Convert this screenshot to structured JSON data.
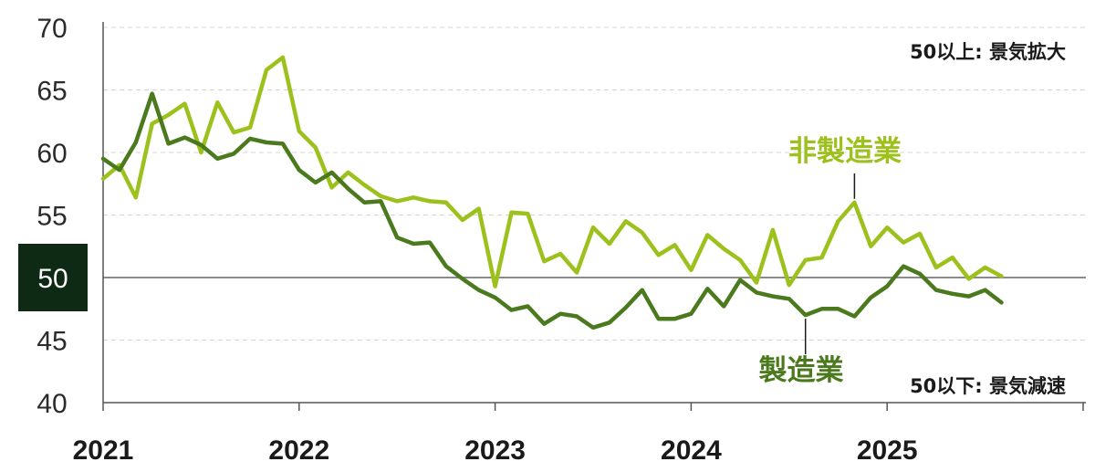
{
  "chart_data": {
    "type": "line",
    "ylim": [
      40,
      70
    ],
    "yticks": [
      40,
      45,
      50,
      55,
      60,
      65,
      70
    ],
    "highlight_y": 50,
    "x_start": "2021-01",
    "x_ticks": [
      "2021",
      "2022",
      "2023",
      "2024",
      "2025"
    ],
    "grid": true,
    "annotations": {
      "upper": "50以上: 景気拡大",
      "lower": "50以下: 景気減速"
    },
    "series": [
      {
        "name": "非製造業",
        "color": "#9dc11c",
        "values": [
          57.9,
          59.0,
          56.4,
          62.3,
          63.0,
          63.9,
          60.0,
          64.0,
          61.6,
          62.0,
          66.6,
          67.6,
          61.7,
          60.4,
          57.2,
          58.4,
          57.4,
          56.5,
          56.1,
          56.4,
          56.1,
          56.0,
          54.6,
          55.5,
          49.3,
          55.2,
          55.1,
          51.3,
          51.9,
          50.4,
          54.0,
          52.7,
          54.5,
          53.6,
          51.8,
          52.6,
          50.6,
          53.4,
          52.3,
          51.4,
          49.6,
          53.8,
          49.4,
          51.4,
          51.6,
          54.5,
          56.0,
          52.5,
          54.0,
          52.8,
          53.5,
          50.8,
          51.6,
          49.9,
          50.8,
          50.1
        ]
      },
      {
        "name": "製造業",
        "color": "#4a7a1d",
        "values": [
          59.5,
          58.6,
          60.8,
          64.7,
          60.7,
          61.2,
          60.6,
          59.5,
          59.9,
          61.1,
          60.8,
          60.7,
          58.6,
          57.6,
          58.4,
          57.1,
          56.0,
          56.1,
          53.2,
          52.7,
          52.8,
          50.9,
          49.9,
          49.0,
          48.4,
          47.4,
          47.7,
          46.3,
          47.1,
          46.9,
          46.0,
          46.4,
          47.6,
          49.0,
          46.7,
          46.7,
          47.1,
          49.1,
          47.7,
          49.8,
          48.8,
          48.5,
          48.3,
          47.0,
          47.5,
          47.5,
          46.9,
          48.4,
          49.3,
          50.9,
          50.3,
          49.0,
          48.7,
          48.5,
          49.0,
          48.0
        ]
      }
    ]
  }
}
